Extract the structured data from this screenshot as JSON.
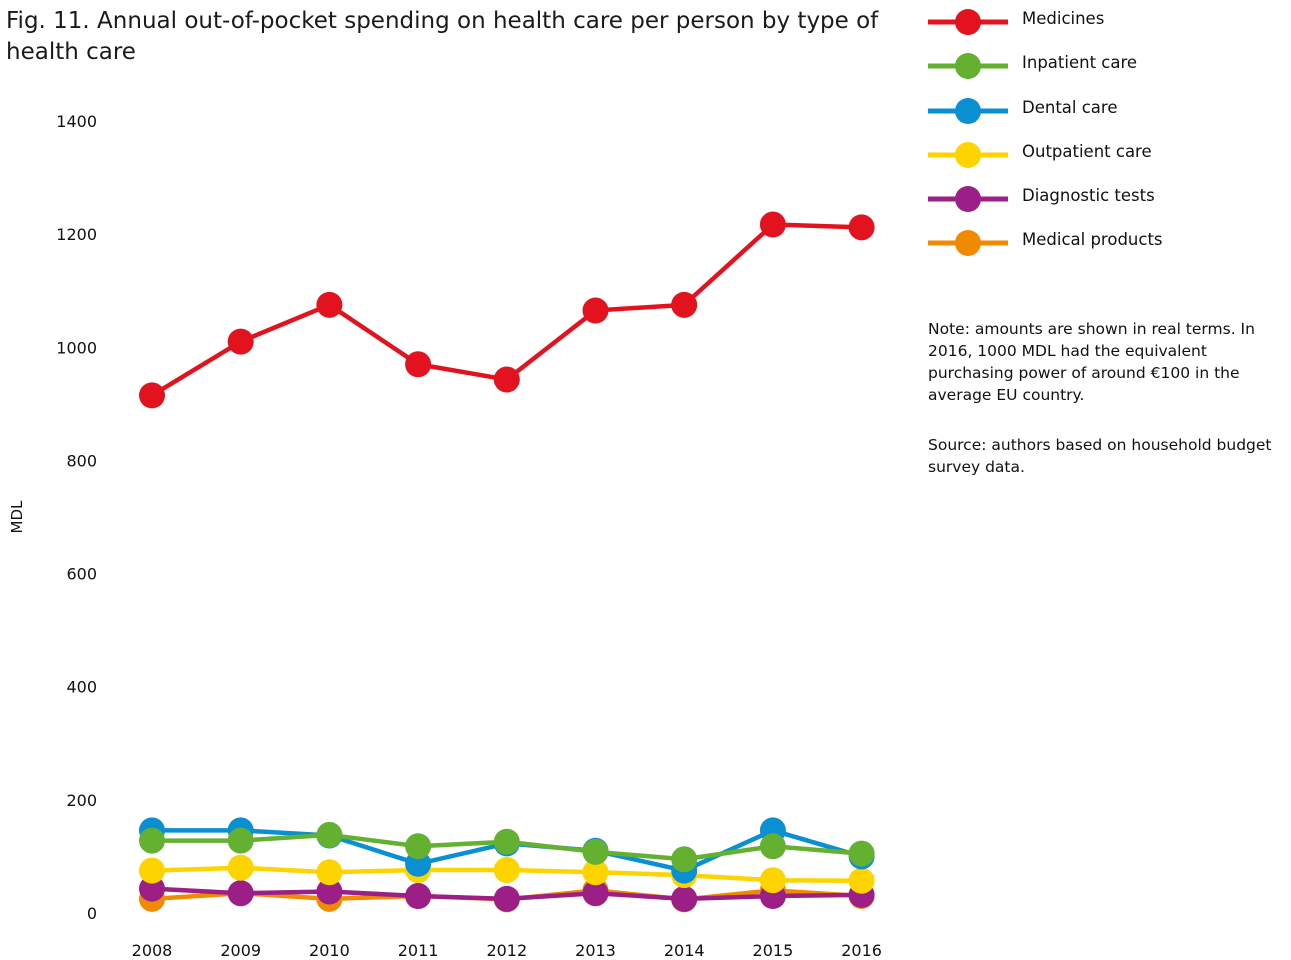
{
  "chart_data": {
    "type": "line",
    "title": "Fig. 11. Annual out-of-pocket spending on health care per person by type of health care",
    "xlabel": "",
    "ylabel": "MDL",
    "ylim": [
      0,
      1400
    ],
    "yticks": [
      0,
      200,
      400,
      600,
      800,
      1000,
      1200,
      1400
    ],
    "x": [
      "2008",
      "2009",
      "2010",
      "2011",
      "2012",
      "2013",
      "2014",
      "2015",
      "2016"
    ],
    "grid": false,
    "legend_position": "top-right",
    "series": [
      {
        "name": "Medicines",
        "color": "#e2131f",
        "values": [
          915,
          1010,
          1075,
          970,
          943,
          1065,
          1075,
          1217,
          1212
        ]
      },
      {
        "name": "Inpatient care",
        "color": "#64b132",
        "values": [
          128,
          128,
          138,
          118,
          126,
          108,
          95,
          118,
          105
        ]
      },
      {
        "name": "Dental care",
        "color": "#0a8fd2",
        "values": [
          146,
          146,
          137,
          87,
          123,
          110,
          75,
          146,
          100
        ]
      },
      {
        "name": "Outpatient care",
        "color": "#fdd400",
        "values": [
          75,
          80,
          72,
          76,
          76,
          72,
          67,
          58,
          57
        ]
      },
      {
        "name": "Diagnostic tests",
        "color": "#9b1f86",
        "values": [
          43,
          35,
          38,
          30,
          25,
          35,
          25,
          30,
          32
        ]
      },
      {
        "name": "Medical products",
        "color": "#f08a00",
        "values": [
          25,
          35,
          25,
          30,
          24,
          40,
          24,
          40,
          30
        ]
      }
    ]
  },
  "note": {
    "text": "Note: amounts are shown in real terms. In 2016, 1000 MDL had the equivalent purchasing power of around €100 in the average EU country.",
    "source": "Source: authors based on household budget survey data."
  }
}
